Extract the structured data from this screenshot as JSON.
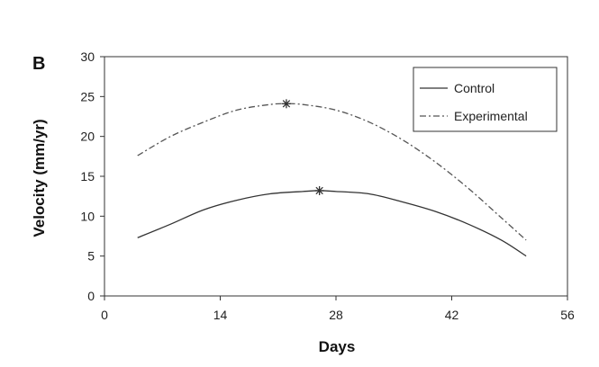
{
  "panel_label": "B",
  "chart_data": {
    "type": "line",
    "title": "",
    "xlabel": "Days",
    "ylabel": "Velocity (mm/yr)",
    "xlim": [
      0,
      56
    ],
    "ylim": [
      0,
      30
    ],
    "xticks": [
      0,
      14,
      28,
      42,
      56
    ],
    "yticks": [
      0,
      5,
      10,
      15,
      20,
      25,
      30
    ],
    "grid": false,
    "legend_position": "top-right",
    "series": [
      {
        "name": "Control",
        "style": "solid",
        "color": "#333333",
        "x": [
          4,
          8,
          12,
          16,
          20,
          24,
          26,
          28,
          32,
          36,
          40,
          44,
          48,
          51
        ],
        "y": [
          7.3,
          9.0,
          10.8,
          12.0,
          12.8,
          13.1,
          13.2,
          13.1,
          12.8,
          11.8,
          10.6,
          9.0,
          7.0,
          5.0
        ],
        "peak": {
          "x": 26,
          "y": 13.2
        }
      },
      {
        "name": "Experimental",
        "style": "dash-dot",
        "color": "#555555",
        "x": [
          4,
          8,
          12,
          16,
          20,
          22,
          24,
          28,
          32,
          36,
          40,
          44,
          48,
          51
        ],
        "y": [
          17.6,
          20.0,
          21.8,
          23.3,
          24.0,
          24.1,
          24.0,
          23.3,
          21.8,
          19.6,
          16.8,
          13.5,
          9.8,
          7.0
        ],
        "peak": {
          "x": 22,
          "y": 24.1
        }
      }
    ]
  }
}
